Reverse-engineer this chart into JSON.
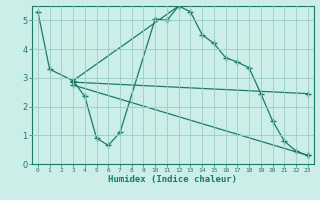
{
  "xlabel": "Humidex (Indice chaleur)",
  "bg_color": "#cceee8",
  "line_color": "#1a7a6a",
  "grid_color": "#99cccc",
  "xlim": [
    -0.5,
    23.5
  ],
  "ylim": [
    0,
    5.5
  ],
  "xticks": [
    0,
    1,
    2,
    3,
    4,
    5,
    6,
    7,
    8,
    9,
    10,
    11,
    12,
    13,
    14,
    15,
    16,
    17,
    18,
    19,
    20,
    21,
    22,
    23
  ],
  "yticks": [
    0,
    1,
    2,
    3,
    4,
    5
  ],
  "series": [
    {
      "x": [
        0,
        1,
        3,
        12,
        13,
        14,
        15,
        16,
        17,
        18,
        19,
        20,
        21,
        22,
        23
      ],
      "y": [
        5.3,
        3.3,
        2.9,
        5.5,
        5.3,
        4.5,
        4.2,
        3.7,
        3.55,
        3.35,
        2.45,
        1.5,
        0.8,
        0.45,
        0.3
      ]
    },
    {
      "x": [
        3,
        4,
        5,
        6,
        7,
        10,
        11,
        12
      ],
      "y": [
        2.9,
        2.35,
        0.9,
        0.65,
        1.1,
        5.05,
        5.0,
        5.5
      ]
    },
    {
      "x": [
        3,
        23
      ],
      "y": [
        2.85,
        2.45
      ]
    },
    {
      "x": [
        3,
        23
      ],
      "y": [
        2.75,
        0.3
      ]
    }
  ]
}
